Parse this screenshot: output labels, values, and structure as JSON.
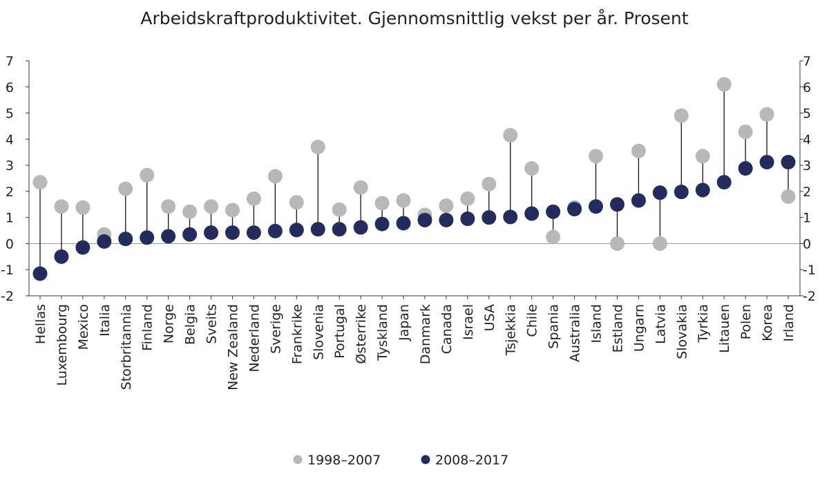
{
  "chart_data": {
    "type": "dot-range",
    "title": "Arbeidskraftproduktivitet. Gjennomsnittlig vekst per år. Prosent",
    "xlabel": "",
    "ylabel": "",
    "ylim": [
      -2,
      7
    ],
    "yticks": [
      -2,
      -1,
      0,
      1,
      2,
      3,
      4,
      5,
      6,
      7
    ],
    "grid": false,
    "legend_position": "bottom",
    "categories": [
      "Hellas",
      "Luxembourg",
      "Mexico",
      "Italia",
      "Storbritannia",
      "Finland",
      "Norge",
      "Belgia",
      "Sveits",
      "New Zealand",
      "Nederland",
      "Sverige",
      "Frankrike",
      "Slovenia",
      "Portugal",
      "Østerrike",
      "Tyskland",
      "Japan",
      "Danmark",
      "Canada",
      "Israel",
      "USA",
      "Tsjekkia",
      "Chile",
      "Spania",
      "Australia",
      "Island",
      "Estland",
      "Ungarn",
      "Latvia",
      "Slovakia",
      "Tyrkia",
      "Litauen",
      "Polen",
      "Korea",
      "Irland"
    ],
    "series": [
      {
        "name": "1998–2007",
        "color": "#b8b8b8",
        "values": [
          2.35,
          1.42,
          1.38,
          0.35,
          2.1,
          2.62,
          1.42,
          1.22,
          1.42,
          1.28,
          1.72,
          2.58,
          1.58,
          3.7,
          1.3,
          2.15,
          1.55,
          1.65,
          1.1,
          1.45,
          1.72,
          2.28,
          4.15,
          2.88,
          0.25,
          1.38,
          3.35,
          0.0,
          3.55,
          0.0,
          4.9,
          3.35,
          6.1,
          4.28,
          4.95,
          1.8
        ]
      },
      {
        "name": "2008–2017",
        "color": "#232c5c",
        "values": [
          -1.15,
          -0.5,
          -0.15,
          0.08,
          0.18,
          0.23,
          0.28,
          0.35,
          0.42,
          0.42,
          0.42,
          0.48,
          0.52,
          0.55,
          0.55,
          0.62,
          0.75,
          0.78,
          0.9,
          0.9,
          0.95,
          1.0,
          1.02,
          1.15,
          1.22,
          1.32,
          1.42,
          1.5,
          1.65,
          1.95,
          1.98,
          2.05,
          2.35,
          2.88,
          3.12,
          3.12
        ]
      }
    ]
  }
}
